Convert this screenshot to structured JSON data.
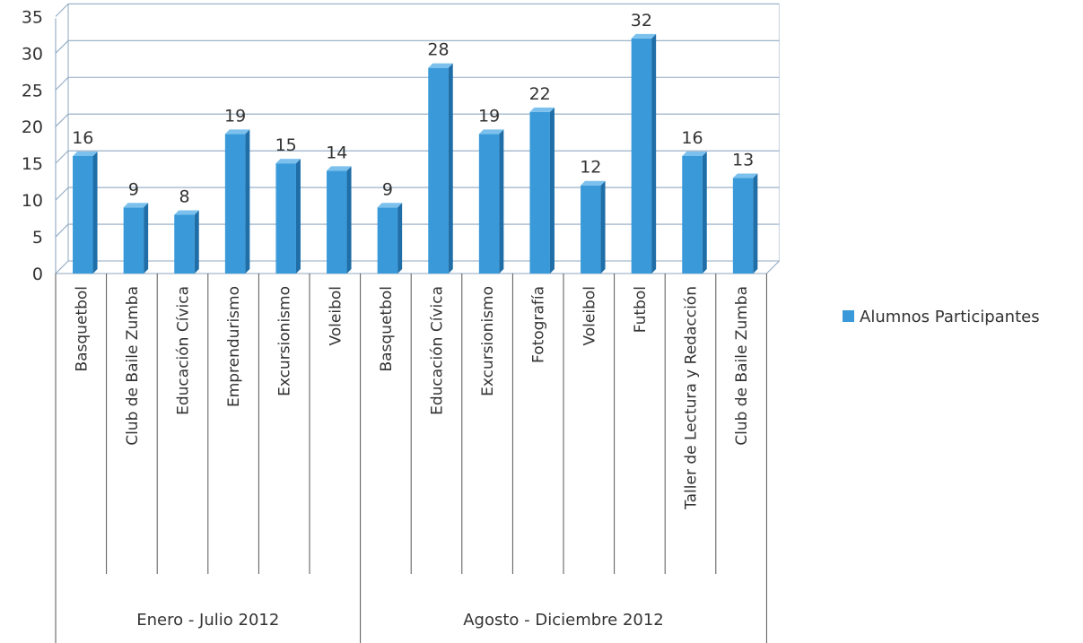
{
  "chart_data": {
    "type": "bar",
    "style": "3d-column",
    "ylim": [
      0,
      35
    ],
    "yticks": [
      0,
      5,
      10,
      15,
      20,
      25,
      30,
      35
    ],
    "grid": true,
    "legend_position": "right",
    "groups": [
      {
        "label": "Enero - Julio 2012",
        "categories": [
          "Basquetbol",
          "Club de Baile Zumba",
          "Educación Cívica",
          "Emprendurismo",
          "Excursionismo",
          "Voleibol"
        ],
        "values": [
          16,
          9,
          8,
          19,
          15,
          14
        ]
      },
      {
        "label": "Agosto - Diciembre 2012",
        "categories": [
          "Basquetbol",
          "Educación Cívica",
          "Excursionismo",
          "Fotografía",
          "Voleibol",
          "Futbol",
          "Taller de Lectura y Redacción",
          "Club de Baile Zumba"
        ],
        "values": [
          9,
          28,
          19,
          22,
          12,
          32,
          16,
          13
        ]
      }
    ],
    "series": [
      {
        "name": "Alumnos Participantes",
        "color": "#3a9ad9"
      }
    ]
  }
}
